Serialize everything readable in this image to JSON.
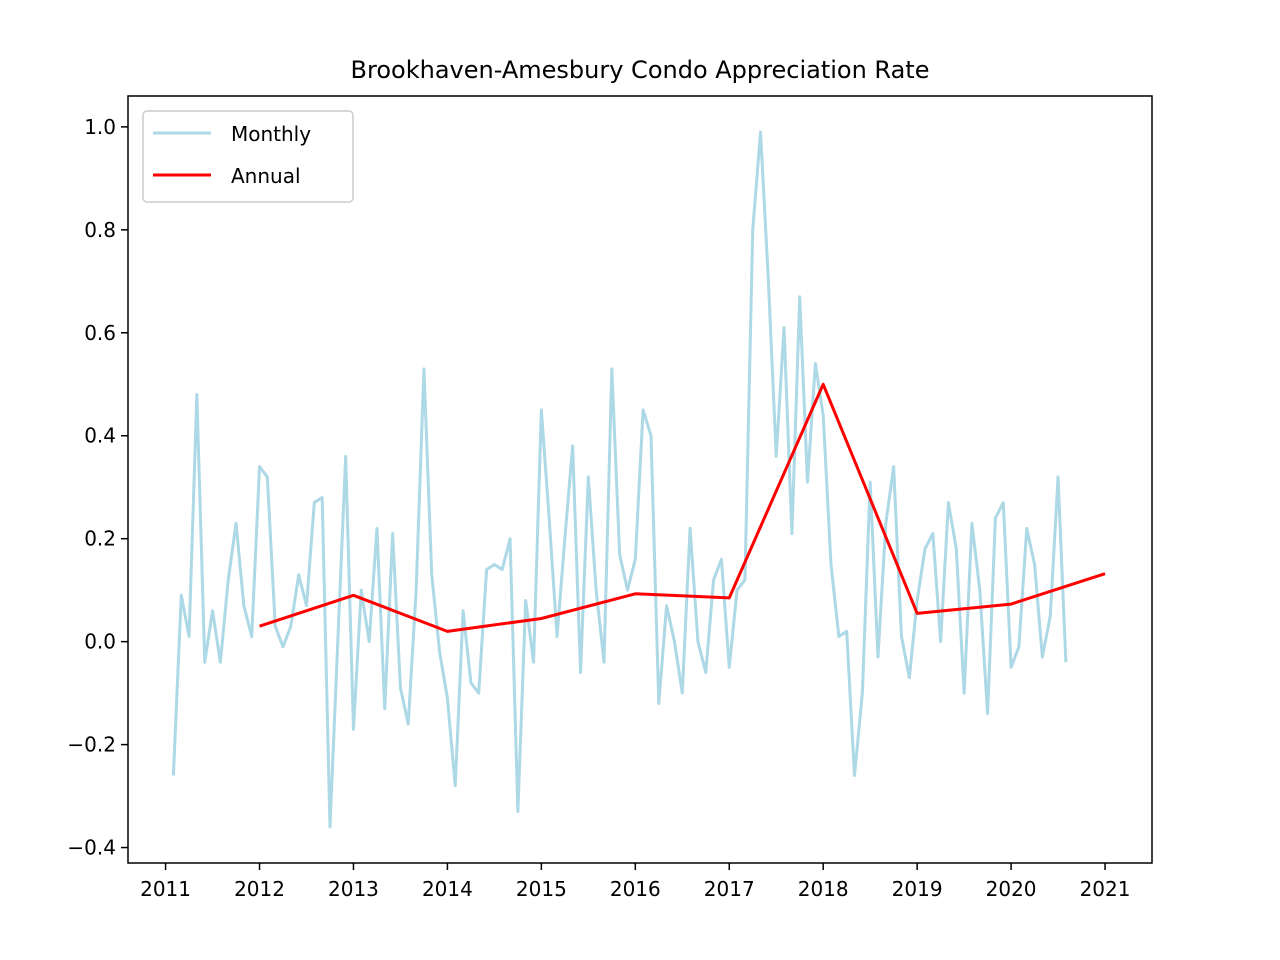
{
  "chart_data": {
    "type": "line",
    "title": "Brookhaven-Amesbury Condo Appreciation Rate",
    "xlabel": "",
    "ylabel": "",
    "xlim": [
      2010.6,
      2021.5
    ],
    "ylim": [
      -0.43,
      1.06
    ],
    "x_ticks": [
      2011,
      2012,
      2013,
      2014,
      2015,
      2016,
      2017,
      2018,
      2019,
      2020,
      2021
    ],
    "x_tick_labels": [
      "2011",
      "2012",
      "2013",
      "2014",
      "2015",
      "2016",
      "2017",
      "2018",
      "2019",
      "2020",
      "2021"
    ],
    "y_ticks": [
      -0.4,
      -0.2,
      0.0,
      0.2,
      0.4,
      0.6,
      0.8,
      1.0
    ],
    "y_tick_labels": [
      "−0.4",
      "−0.2",
      "0.0",
      "0.2",
      "0.4",
      "0.6",
      "0.8",
      "1.0"
    ],
    "grid": false,
    "legend_position": "top-left",
    "series": [
      {
        "name": "Monthly",
        "color": "#add8e6",
        "x": [
          2011.083,
          2011.167,
          2011.25,
          2011.333,
          2011.417,
          2011.5,
          2011.583,
          2011.667,
          2011.75,
          2011.833,
          2011.917,
          2012.0,
          2012.083,
          2012.167,
          2012.25,
          2012.333,
          2012.417,
          2012.5,
          2012.583,
          2012.667,
          2012.75,
          2012.833,
          2012.917,
          2013.0,
          2013.083,
          2013.167,
          2013.25,
          2013.333,
          2013.417,
          2013.5,
          2013.583,
          2013.667,
          2013.75,
          2013.833,
          2013.917,
          2014.0,
          2014.083,
          2014.167,
          2014.25,
          2014.333,
          2014.417,
          2014.5,
          2014.583,
          2014.667,
          2014.75,
          2014.833,
          2014.917,
          2015.0,
          2015.083,
          2015.167,
          2015.25,
          2015.333,
          2015.417,
          2015.5,
          2015.583,
          2015.667,
          2015.75,
          2015.833,
          2015.917,
          2016.0,
          2016.083,
          2016.167,
          2016.25,
          2016.333,
          2016.417,
          2016.5,
          2016.583,
          2016.667,
          2016.75,
          2016.833,
          2016.917,
          2017.0,
          2017.083,
          2017.167,
          2017.25,
          2017.333,
          2017.417,
          2017.5,
          2017.583,
          2017.667,
          2017.75,
          2017.833,
          2017.917,
          2018.0,
          2018.083,
          2018.167,
          2018.25,
          2018.333,
          2018.417,
          2018.5,
          2018.583,
          2018.667,
          2018.75,
          2018.833,
          2018.917,
          2019.0,
          2019.083,
          2019.167,
          2019.25,
          2019.333,
          2019.417,
          2019.5,
          2019.583,
          2019.667,
          2019.75,
          2019.833,
          2019.917,
          2020.0,
          2020.083,
          2020.167,
          2020.25,
          2020.333,
          2020.417,
          2020.5,
          2020.583
        ],
        "y": [
          -0.26,
          0.09,
          0.01,
          0.48,
          -0.04,
          0.06,
          -0.04,
          0.12,
          0.23,
          0.07,
          0.01,
          0.34,
          0.32,
          0.03,
          -0.01,
          0.03,
          0.13,
          0.07,
          0.27,
          0.28,
          -0.36,
          0.0,
          0.36,
          -0.17,
          0.1,
          0.0,
          0.22,
          -0.13,
          0.21,
          -0.09,
          -0.16,
          0.1,
          0.53,
          0.13,
          -0.02,
          -0.11,
          -0.28,
          0.06,
          -0.08,
          -0.1,
          0.14,
          0.15,
          0.14,
          0.2,
          -0.33,
          0.08,
          -0.04,
          0.45,
          0.24,
          0.01,
          0.2,
          0.38,
          -0.06,
          0.32,
          0.1,
          -0.04,
          0.53,
          0.17,
          0.1,
          0.16,
          0.45,
          0.4,
          -0.12,
          0.07,
          0.0,
          -0.1,
          0.22,
          0.0,
          -0.06,
          0.12,
          0.16,
          -0.05,
          0.1,
          0.12,
          0.8,
          0.99,
          0.7,
          0.36,
          0.61,
          0.21,
          0.67,
          0.31,
          0.54,
          0.44,
          0.15,
          0.01,
          0.02,
          -0.26,
          -0.1,
          0.31,
          -0.03,
          0.23,
          0.34,
          0.01,
          -0.07,
          0.08,
          0.18,
          0.21,
          0.0,
          0.27,
          0.18,
          -0.1,
          0.23,
          0.1,
          -0.14,
          0.24,
          0.27,
          -0.05,
          -0.01,
          0.22,
          0.15,
          -0.03,
          0.05,
          0.32,
          -0.04
        ]
      },
      {
        "name": "Annual",
        "color": "#ff0000",
        "x": [
          2012,
          2013,
          2014,
          2015,
          2016,
          2017,
          2018,
          2019,
          2020,
          2021
        ],
        "y": [
          0.03,
          0.09,
          0.02,
          0.045,
          0.093,
          0.085,
          0.5,
          0.055,
          0.073,
          0.132
        ]
      }
    ]
  }
}
